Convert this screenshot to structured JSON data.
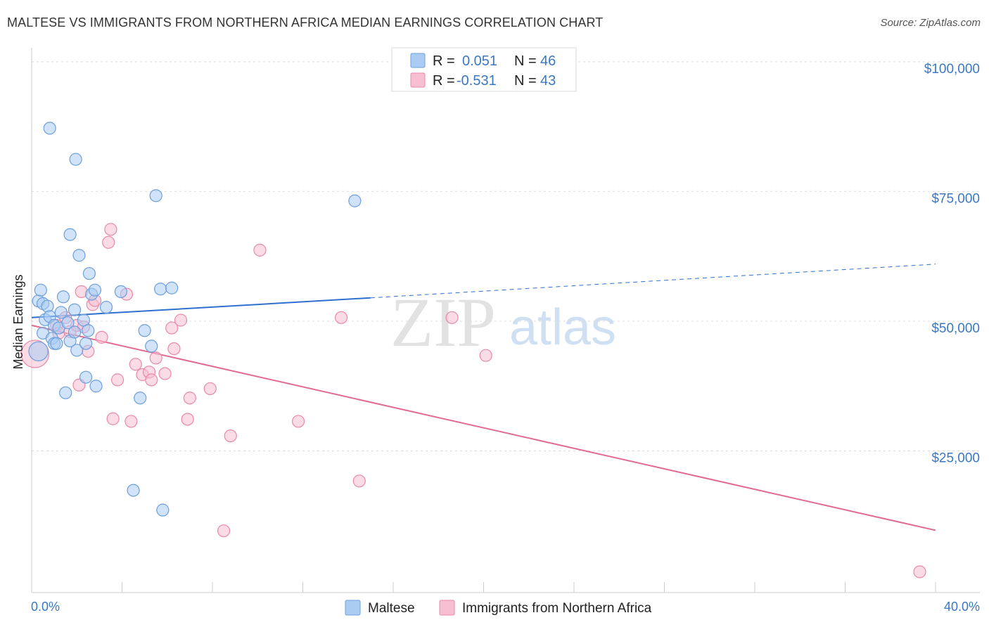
{
  "title": "MALTESE VS IMMIGRANTS FROM NORTHERN AFRICA MEDIAN EARNINGS CORRELATION CHART",
  "source": "Source: ZipAtlas.com",
  "watermark": {
    "zip": "ZIP",
    "atlas": "atlas"
  },
  "legend": {
    "r_label": "R =",
    "n_label": "N =",
    "entries": [
      {
        "r": "0.051",
        "n": "46",
        "color": "#aaccf2",
        "stroke": "#6d9fdc"
      },
      {
        "r": "-0.531",
        "n": "43",
        "color": "#f7bfd2",
        "stroke": "#e889aa"
      }
    ]
  },
  "chart_data": {
    "type": "scatter",
    "title": "MALTESE VS IMMIGRANTS FROM NORTHERN AFRICA MEDIAN EARNINGS CORRELATION CHART",
    "xlabel": "",
    "ylabel": "Median Earnings",
    "xlim": [
      0,
      40
    ],
    "ylim": [
      0,
      105000
    ],
    "y_ticks": [
      {
        "value": 25000,
        "label": "$25,000"
      },
      {
        "value": 50000,
        "label": "$50,000"
      },
      {
        "value": 75000,
        "label": "$75,000"
      },
      {
        "value": 100000,
        "label": "$100,000"
      }
    ],
    "x_tick_labels": [
      {
        "value": 0,
        "label": "0.0%"
      },
      {
        "value": 40,
        "label": "40.0%"
      }
    ],
    "x_minor_ticks": [
      0,
      4,
      8,
      12,
      16,
      20,
      24,
      28,
      32,
      36,
      40
    ],
    "series": [
      {
        "name": "Maltese",
        "color": "#aaccf2",
        "stroke": "#6d9fdc",
        "trend": {
          "x0": 0,
          "y0": 53000,
          "x1": 15,
          "y1": 56800,
          "dash_to_x": 40,
          "dash_to_y": 63300,
          "color": "#2f6fce"
        },
        "points": [
          [
            0.3,
            46500,
            1.6
          ],
          [
            0.3,
            56200,
            1
          ],
          [
            0.4,
            58300,
            1
          ],
          [
            0.5,
            55700,
            1
          ],
          [
            0.5,
            50000,
            1
          ],
          [
            0.6,
            52600,
            1
          ],
          [
            0.7,
            55200,
            1
          ],
          [
            0.8,
            89500,
            1
          ],
          [
            0.8,
            53200,
            1
          ],
          [
            0.9,
            49000,
            1
          ],
          [
            1.0,
            48000,
            1
          ],
          [
            1.0,
            51500,
            1
          ],
          [
            1.1,
            48000,
            1
          ],
          [
            1.2,
            51000,
            1
          ],
          [
            1.3,
            54000,
            1
          ],
          [
            1.4,
            57000,
            1
          ],
          [
            1.5,
            38500,
            1
          ],
          [
            1.6,
            52000,
            1
          ],
          [
            1.7,
            48500,
            1
          ],
          [
            1.7,
            69000,
            1
          ],
          [
            1.9,
            54500,
            1
          ],
          [
            1.9,
            50200,
            1
          ],
          [
            1.95,
            83500,
            1
          ],
          [
            2.0,
            46700,
            1
          ],
          [
            2.1,
            65000,
            1
          ],
          [
            2.3,
            52500,
            1
          ],
          [
            2.4,
            48000,
            1
          ],
          [
            2.4,
            41500,
            1
          ],
          [
            2.5,
            50500,
            1
          ],
          [
            2.55,
            61500,
            1
          ],
          [
            2.65,
            57500,
            1
          ],
          [
            2.8,
            58300,
            1
          ],
          [
            2.85,
            39800,
            1
          ],
          [
            3.3,
            55000,
            1
          ],
          [
            3.95,
            58000,
            1
          ],
          [
            4.5,
            19700,
            1
          ],
          [
            4.8,
            37500,
            1
          ],
          [
            5.0,
            50500,
            1
          ],
          [
            5.3,
            47500,
            1
          ],
          [
            5.5,
            76500,
            1
          ],
          [
            5.7,
            58500,
            1
          ],
          [
            5.8,
            15900,
            1
          ],
          [
            6.2,
            58700,
            1
          ],
          [
            14.3,
            75500,
            1
          ]
        ]
      },
      {
        "name": "Immigrants from Northern Africa",
        "color": "#f7bfd2",
        "stroke": "#e889aa",
        "trend": {
          "x0": 0,
          "y0": 51500,
          "x1": 40,
          "y1": 12000,
          "color": "#e26a92"
        },
        "points": [
          [
            0.15,
            46000,
            2.3
          ],
          [
            1.1,
            51500,
            1
          ],
          [
            1.2,
            50000,
            1
          ],
          [
            1.5,
            53000,
            1
          ],
          [
            1.7,
            50300,
            1
          ],
          [
            2.0,
            51500,
            1
          ],
          [
            2.1,
            40000,
            1
          ],
          [
            2.2,
            58000,
            1
          ],
          [
            2.3,
            51200,
            1
          ],
          [
            2.5,
            46500,
            1
          ],
          [
            2.7,
            55500,
            1
          ],
          [
            2.8,
            56300,
            1
          ],
          [
            3.1,
            49200,
            1
          ],
          [
            3.4,
            67500,
            1
          ],
          [
            3.5,
            70000,
            1
          ],
          [
            3.6,
            33500,
            1
          ],
          [
            3.8,
            41000,
            1
          ],
          [
            4.2,
            57500,
            1
          ],
          [
            4.4,
            33000,
            1
          ],
          [
            4.6,
            44000,
            1
          ],
          [
            4.9,
            42000,
            1
          ],
          [
            5.2,
            42500,
            1
          ],
          [
            5.3,
            41000,
            1
          ],
          [
            5.5,
            45200,
            1
          ],
          [
            5.9,
            42200,
            1
          ],
          [
            6.2,
            51000,
            1
          ],
          [
            6.3,
            47000,
            1
          ],
          [
            6.6,
            52500,
            1
          ],
          [
            6.9,
            33400,
            1
          ],
          [
            7.0,
            37500,
            1
          ],
          [
            7.9,
            39300,
            1
          ],
          [
            8.8,
            30200,
            1
          ],
          [
            8.5,
            11900,
            1
          ],
          [
            10.1,
            66000,
            1
          ],
          [
            11.8,
            33000,
            1
          ],
          [
            13.7,
            53000,
            1
          ],
          [
            14.5,
            21500,
            1
          ],
          [
            18.6,
            53000,
            1
          ],
          [
            20.1,
            45700,
            1
          ],
          [
            39.3,
            4000,
            1
          ]
        ]
      }
    ]
  },
  "bottom_legend": [
    {
      "label": "Maltese",
      "color": "#aaccf2",
      "stroke": "#6d9fdc"
    },
    {
      "label": "Immigrants from Northern Africa",
      "color": "#f7bfd2",
      "stroke": "#e889aa"
    }
  ]
}
